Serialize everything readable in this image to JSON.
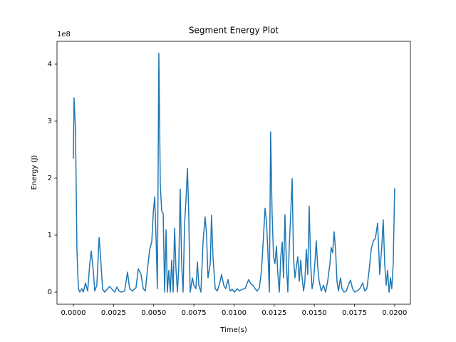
{
  "chart_data": {
    "type": "line",
    "title": "Segment Energy Plot",
    "xlabel": "Time(s)",
    "ylabel": "Energy (J)",
    "y_offset_label": "1e8",
    "color": "#1f77b4",
    "xlim": [
      -0.00102,
      0.02098
    ],
    "ylim": [
      -0.2125,
      4.4
    ],
    "xticks": [
      {
        "value": 0,
        "label": "0.0000"
      },
      {
        "value": 0.0025,
        "label": "0.0025"
      },
      {
        "value": 0.005,
        "label": "0.0050"
      },
      {
        "value": 0.0075,
        "label": "0.0075"
      },
      {
        "value": 0.01,
        "label": "0.0100"
      },
      {
        "value": 0.0125,
        "label": "0.0125"
      },
      {
        "value": 0.015,
        "label": "0.0150"
      },
      {
        "value": 0.0175,
        "label": "0.0175"
      },
      {
        "value": 0.02,
        "label": "0.0200"
      }
    ],
    "yticks": [
      0,
      1,
      2,
      3,
      4
    ],
    "x": [
      0,
      4e-05,
      0.00013,
      0.00022,
      0.00031,
      0.0004,
      0.00053,
      0.00062,
      0.00075,
      0.00089,
      0.00102,
      0.00111,
      0.00124,
      0.00133,
      0.00146,
      0.0016,
      0.00169,
      0.00182,
      0.00195,
      0.00213,
      0.00226,
      0.00244,
      0.00257,
      0.00271,
      0.00284,
      0.00297,
      0.00319,
      0.00337,
      0.0035,
      0.00368,
      0.0039,
      0.00404,
      0.00421,
      0.00435,
      0.00448,
      0.00461,
      0.00475,
      0.00488,
      0.00497,
      0.00506,
      0.00514,
      0.00523,
      0.00532,
      0.00541,
      0.0055,
      0.00559,
      0.00568,
      0.00577,
      0.00585,
      0.00594,
      0.00603,
      0.00612,
      0.00621,
      0.0063,
      0.00639,
      0.00648,
      0.00656,
      0.00665,
      0.00674,
      0.00683,
      0.00692,
      0.00701,
      0.0071,
      0.00718,
      0.00727,
      0.00741,
      0.0075,
      0.00763,
      0.00772,
      0.00781,
      0.00794,
      0.00807,
      0.0082,
      0.00829,
      0.00838,
      0.00852,
      0.0086,
      0.00869,
      0.00883,
      0.00896,
      0.00914,
      0.00922,
      0.00936,
      0.00949,
      0.00962,
      0.00976,
      0.00989,
      0.01002,
      0.0102,
      0.01033,
      0.01051,
      0.01069,
      0.01091,
      0.01104,
      0.01118,
      0.01131,
      0.01144,
      0.01158,
      0.01171,
      0.01184,
      0.01193,
      0.01202,
      0.01211,
      0.0122,
      0.01228,
      0.01237,
      0.01246,
      0.01255,
      0.01264,
      0.01273,
      0.01282,
      0.01291,
      0.013,
      0.01308,
      0.01317,
      0.01326,
      0.01335,
      0.01344,
      0.01353,
      0.01362,
      0.0137,
      0.01379,
      0.01388,
      0.01397,
      0.01406,
      0.01415,
      0.01424,
      0.01433,
      0.01441,
      0.0145,
      0.01459,
      0.01468,
      0.01477,
      0.01486,
      0.01495,
      0.01503,
      0.01512,
      0.01521,
      0.0153,
      0.01543,
      0.01557,
      0.0157,
      0.01583,
      0.01597,
      0.01605,
      0.01614,
      0.01623,
      0.01632,
      0.01641,
      0.0165,
      0.01663,
      0.01672,
      0.01685,
      0.01699,
      0.01712,
      0.01725,
      0.01738,
      0.01752,
      0.01765,
      0.01783,
      0.01801,
      0.01814,
      0.01827,
      0.01841,
      0.01854,
      0.01867,
      0.0188,
      0.01894,
      0.01907,
      0.0192,
      0.01929,
      0.01938,
      0.01947,
      0.01956,
      0.01965,
      0.01974,
      0.01982,
      0.01991,
      0.02
    ],
    "values": [
      2.34,
      3.41,
      2.88,
      0.75,
      0.06,
      0,
      0.06,
      0,
      0.16,
      0.02,
      0.5,
      0.72,
      0.38,
      0.02,
      0.12,
      0.96,
      0.62,
      0.05,
      0,
      0.06,
      0.1,
      0.04,
      0,
      0.09,
      0.02,
      0,
      0.02,
      0.35,
      0.06,
      0.02,
      0.08,
      0.41,
      0.31,
      0.06,
      0.02,
      0.4,
      0.75,
      0.88,
      1.38,
      1.67,
      1.0,
      0.06,
      4.19,
      1.88,
      1.42,
      1.38,
      0,
      1.09,
      0,
      0.38,
      0,
      0.56,
      0,
      1.12,
      0.38,
      0,
      0.44,
      1.81,
      0.5,
      0,
      1.18,
      1.62,
      2.17,
      1.38,
      0,
      0.25,
      0.12,
      0.06,
      0.53,
      0.12,
      0,
      0.88,
      1.32,
      1.0,
      0.25,
      0.5,
      1.35,
      0.62,
      0.06,
      0.02,
      0.19,
      0.31,
      0.12,
      0.06,
      0.22,
      0.02,
      0.05,
      0,
      0.06,
      0.02,
      0.05,
      0.06,
      0.22,
      0.15,
      0.12,
      0.06,
      0.02,
      0.08,
      0.38,
      1.0,
      1.47,
      1.25,
      0.69,
      0,
      2.81,
      1.38,
      0.62,
      0.5,
      0.81,
      0.31,
      0,
      0.62,
      0.88,
      0.25,
      1.36,
      0.5,
      0,
      0.81,
      1.38,
      1.99,
      0.62,
      0.25,
      0.44,
      0.62,
      0.19,
      0.56,
      0.25,
      0.02,
      0.19,
      0.75,
      0.31,
      1.51,
      0.5,
      0.06,
      0.19,
      0.5,
      0.9,
      0.44,
      0.19,
      0.02,
      0.12,
      0,
      0.19,
      0.5,
      0.78,
      0.69,
      1.06,
      0.75,
      0.19,
      0.02,
      0.25,
      0.06,
      0,
      0.02,
      0.12,
      0.21,
      0.06,
      0,
      0.02,
      0.06,
      0.16,
      0.02,
      0.06,
      0.38,
      0.75,
      0.9,
      0.94,
      1.21,
      0.31,
      0.81,
      1.27,
      0.5,
      0.12,
      0.38,
      0,
      0.25,
      0.06,
      0.5,
      1.82
    ]
  }
}
